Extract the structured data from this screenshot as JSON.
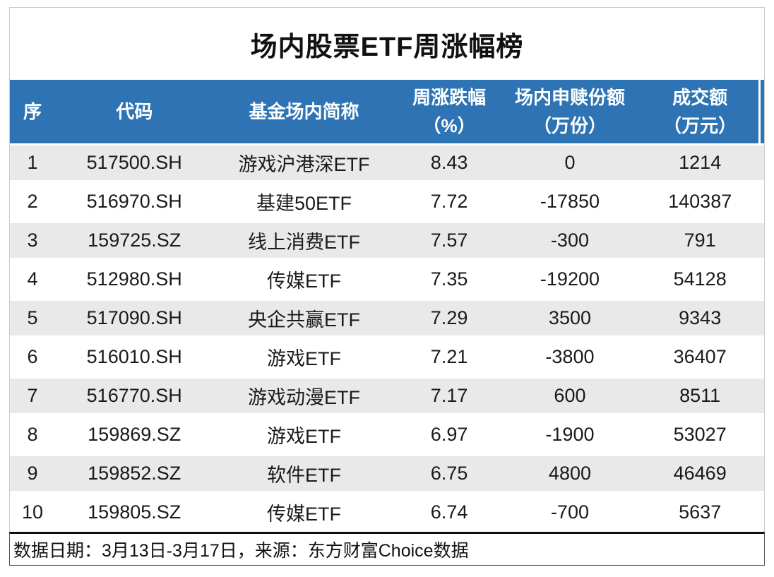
{
  "page_title": "场内股票ETF周涨幅榜",
  "colors": {
    "header_bg": "#2e74b5",
    "header_text": "#ffffff",
    "stripe_bg": "#e9e9e9",
    "body_text": "#1a1a1a",
    "card_border": "#c9c9c9",
    "footnote_top_border": "#111111"
  },
  "table": {
    "columns": [
      {
        "key": "rank",
        "label": "序",
        "unit": ""
      },
      {
        "key": "code",
        "label": "代码",
        "unit": ""
      },
      {
        "key": "fund-name",
        "label": "基金场内简称",
        "unit": ""
      },
      {
        "key": "weekly-change",
        "label": "周涨跌幅",
        "unit": "（%）"
      },
      {
        "key": "net-subscription",
        "label": "场内申赎份额",
        "unit": "（万份）"
      },
      {
        "key": "turnover",
        "label": "成交额",
        "unit": "（万元）"
      }
    ],
    "rows": [
      [
        "1",
        "517500.SH",
        "游戏沪港深ETF",
        "8.43",
        "0",
        "1214"
      ],
      [
        "2",
        "516970.SH",
        "基建50ETF",
        "7.72",
        "-17850",
        "140387"
      ],
      [
        "3",
        "159725.SZ",
        "线上消费ETF",
        "7.57",
        "-300",
        "791"
      ],
      [
        "4",
        "512980.SH",
        "传媒ETF",
        "7.35",
        "-19200",
        "54128"
      ],
      [
        "5",
        "517090.SH",
        "央企共赢ETF",
        "7.29",
        "3500",
        "9343"
      ],
      [
        "6",
        "516010.SH",
        "游戏ETF",
        "7.21",
        "-3800",
        "36407"
      ],
      [
        "7",
        "516770.SH",
        "游戏动漫ETF",
        "7.17",
        "600",
        "8511"
      ],
      [
        "8",
        "159869.SZ",
        "游戏ETF",
        "6.97",
        "-1900",
        "53027"
      ],
      [
        "9",
        "159852.SZ",
        "软件ETF",
        "6.75",
        "4800",
        "46469"
      ],
      [
        "10",
        "159805.SZ",
        "传媒ETF",
        "6.74",
        "-700",
        "5637"
      ]
    ]
  },
  "footer": {
    "note": "数据日期：3月13日-3月17日，来源：东方财富Choice数据"
  },
  "chart_data": {
    "type": "table",
    "title": "场内股票ETF周涨幅榜",
    "columns": [
      "序",
      "代码",
      "基金场内简称",
      "周涨跌幅（%）",
      "场内申赎份额（万份）",
      "成交额（万元）"
    ],
    "rows": [
      [
        1,
        "517500.SH",
        "游戏沪港深ETF",
        8.43,
        0,
        1214
      ],
      [
        2,
        "516970.SH",
        "基建50ETF",
        7.72,
        -17850,
        140387
      ],
      [
        3,
        "159725.SZ",
        "线上消费ETF",
        7.57,
        -300,
        791
      ],
      [
        4,
        "512980.SH",
        "传媒ETF",
        7.35,
        -19200,
        54128
      ],
      [
        5,
        "517090.SH",
        "央企共赢ETF",
        7.29,
        3500,
        9343
      ],
      [
        6,
        "516010.SH",
        "游戏ETF",
        7.21,
        -3800,
        36407
      ],
      [
        7,
        "516770.SH",
        "游戏动漫ETF",
        7.17,
        600,
        8511
      ],
      [
        8,
        "159869.SZ",
        "游戏ETF",
        6.97,
        -1900,
        53027
      ],
      [
        9,
        "159852.SZ",
        "软件ETF",
        6.75,
        4800,
        46469
      ],
      [
        10,
        "159805.SZ",
        "传媒ETF",
        6.74,
        -700,
        5637
      ]
    ],
    "source_note": "数据日期：3月13日-3月17日，来源：东方财富Choice数据",
    "layout": {
      "striped_rows": "odd",
      "header_style": "blue-banner",
      "zebra": true
    }
  }
}
